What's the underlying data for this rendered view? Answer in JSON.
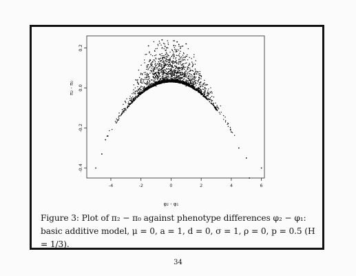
{
  "figure": {
    "caption_label": "Figure 3:",
    "caption_text": "Plot of π₂ − π₀ against phenotype differences φ₂ − φ₁: basic additive model, μ = 0, a = 1, d = 0, σ = 1, ρ = 0, p = 0.5 (H = 1/3)."
  },
  "page_number": "34",
  "chart_data": {
    "type": "scatter",
    "title": "",
    "xlabel": "φ₂ - φ₁",
    "ylabel": "π₂ - π₀",
    "xlim": [
      -5.6,
      6.2
    ],
    "ylim": [
      -0.45,
      0.26
    ],
    "xticks": [
      -4,
      -2,
      0,
      2,
      4,
      6
    ],
    "yticks": [
      -0.4,
      -0.2,
      0.0,
      0.2
    ],
    "xtick_labels": [
      "-4",
      "-2",
      "0",
      "2",
      "4",
      "6"
    ],
    "ytick_labels": [
      "-0.4",
      "-0.2",
      "0.0",
      "0.2"
    ],
    "grid": false,
    "color": "#000000",
    "envelope": {
      "description": "dense lower boundary following y = 0.03 - 0.0155 x^2 with scatter above",
      "x_range": [
        -5.0,
        6.0
      ]
    },
    "sample_points": [
      {
        "x": -5.0,
        "y": -0.4
      },
      {
        "x": -4.6,
        "y": -0.33
      },
      {
        "x": -4.2,
        "y": -0.24
      },
      {
        "x": -3.5,
        "y": -0.16
      },
      {
        "x": -3.0,
        "y": -0.11
      },
      {
        "x": -2.0,
        "y": -0.03
      },
      {
        "x": -1.0,
        "y": 0.01
      },
      {
        "x": 0.0,
        "y": 0.03
      },
      {
        "x": 1.0,
        "y": 0.01
      },
      {
        "x": 2.0,
        "y": -0.03
      },
      {
        "x": 3.0,
        "y": -0.11
      },
      {
        "x": 4.0,
        "y": -0.22
      },
      {
        "x": 4.5,
        "y": -0.3
      },
      {
        "x": 5.0,
        "y": -0.35
      },
      {
        "x": 5.2,
        "y": -0.45
      },
      {
        "x": 6.0,
        "y": -0.4
      },
      {
        "x": -0.6,
        "y": 0.24
      },
      {
        "x": 0.4,
        "y": 0.23
      },
      {
        "x": 1.0,
        "y": 0.22
      },
      {
        "x": -1.5,
        "y": 0.21
      }
    ]
  }
}
